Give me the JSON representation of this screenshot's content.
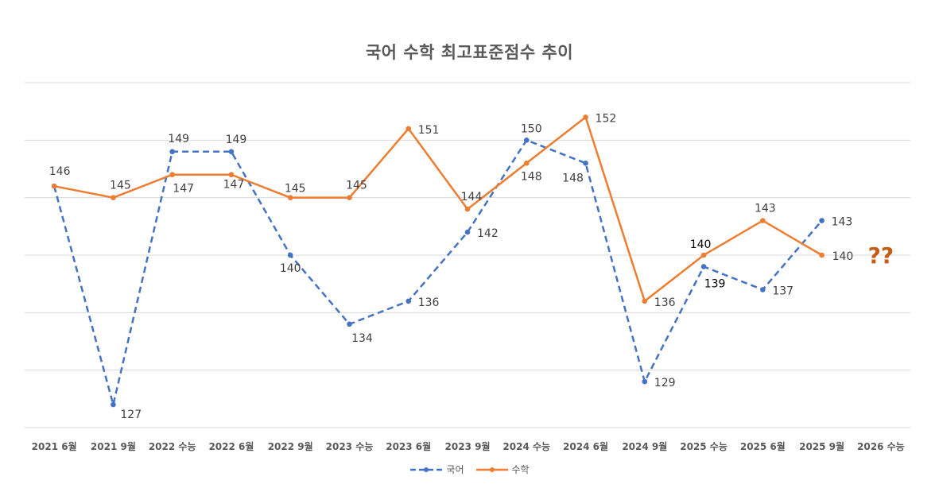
{
  "chart_data": {
    "type": "line",
    "title": "국어 수학 최고표준점수 추이",
    "xlabel": "",
    "ylabel": "",
    "categories": [
      "2021 6월",
      "2021 9월",
      "2022 수능",
      "2022 6월",
      "2022 9월",
      "2023 수능",
      "2023 6월",
      "2023 9월",
      "2024 수능",
      "2024 6월",
      "2024 9월",
      "2025 수능",
      "2025 6월",
      "2025 9월",
      "2026 수능"
    ],
    "ylim": [
      125,
      155
    ],
    "ytick_step": 5,
    "y_tick_labels_visible": false,
    "grid": true,
    "legend_position": "bottom",
    "series": [
      {
        "name": "국어",
        "color": "#4472C4",
        "style": "dashed",
        "values": [
          146,
          127,
          149,
          149,
          140,
          134,
          136,
          142,
          150,
          148,
          129,
          139,
          137,
          143,
          null
        ]
      },
      {
        "name": "수학",
        "color": "#ED7D31",
        "style": "solid",
        "values": [
          146,
          145,
          147,
          147,
          145,
          145,
          151,
          144,
          148,
          152,
          136,
          140,
          143,
          140,
          null
        ]
      }
    ],
    "annotations": [
      {
        "text": "??",
        "category": "2026 수능",
        "y": 140,
        "color": "#C55A11"
      }
    ]
  }
}
